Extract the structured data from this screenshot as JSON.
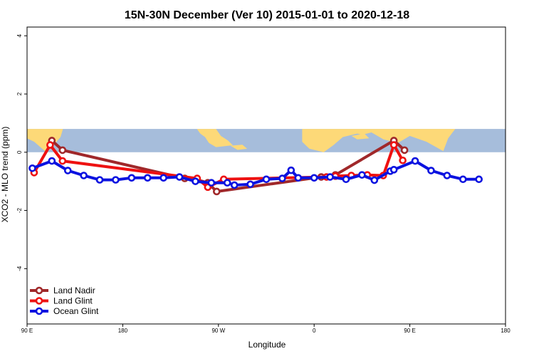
{
  "chart_data": {
    "type": "line",
    "title": "15N-30N December (Ver 10)   2015-01-01 to 2020-12-18",
    "xlabel": "Longitude",
    "ylabel": "XCO2 - MLO trend (ppm)",
    "xlim": [
      -90,
      180
    ],
    "ylim": [
      -5.9,
      4.3
    ],
    "x_ticks": [
      {
        "value": -90,
        "label": "90 E"
      },
      {
        "value": -36,
        "label": "180"
      },
      {
        "value": 18,
        "label": "90 W"
      },
      {
        "value": 72,
        "label": "0"
      },
      {
        "value": 126,
        "label": "90 E"
      },
      {
        "value": 180,
        "label": "180"
      }
    ],
    "y_ticks": [
      {
        "value": 4,
        "label": "4"
      },
      {
        "value": 2,
        "label": "2"
      },
      {
        "value": 0,
        "label": "0"
      },
      {
        "value": -2,
        "label": "-2"
      },
      {
        "value": -4,
        "label": "-4"
      }
    ],
    "background_map": {
      "y_range": [
        0,
        0.8
      ],
      "ocean_color": "#a6bddb",
      "land_color": "#fdd978"
    },
    "legend_position": "bottom-left",
    "series": [
      {
        "name": "Land Nadir",
        "color": "#a0282a",
        "points": [
          [
            -76,
            0.4
          ],
          [
            -70,
            0.07
          ],
          [
            -1,
            -0.9
          ],
          [
            6,
            -0.95
          ],
          [
            12,
            -1.05
          ],
          [
            17,
            -1.35
          ],
          [
            76,
            -0.85
          ],
          [
            84,
            -0.78
          ],
          [
            117,
            0.4
          ],
          [
            123,
            0.07
          ]
        ]
      },
      {
        "name": "Land Glint",
        "color": "#ee1111",
        "points": [
          [
            -86,
            -0.7
          ],
          [
            -77,
            0.25
          ],
          [
            -70,
            -0.3
          ],
          [
            6,
            -0.9
          ],
          [
            12,
            -1.2
          ],
          [
            21,
            -0.93
          ],
          [
            79,
            -0.85
          ],
          [
            84,
            -0.82
          ],
          [
            93,
            -0.8
          ],
          [
            102,
            -0.78
          ],
          [
            111,
            -0.8
          ],
          [
            117,
            0.25
          ],
          [
            122,
            -0.28
          ]
        ]
      },
      {
        "name": "Ocean Glint",
        "color": "#0b12e0",
        "points": [
          [
            -87,
            -0.55
          ],
          [
            -76,
            -0.3
          ],
          [
            -67,
            -0.63
          ],
          [
            -58,
            -0.8
          ],
          [
            -49,
            -0.95
          ],
          [
            -40,
            -0.95
          ],
          [
            -31,
            -0.88
          ],
          [
            -22,
            -0.88
          ],
          [
            -13,
            -0.88
          ],
          [
            -4,
            -0.85
          ],
          [
            5,
            -1.0
          ],
          [
            14,
            -1.05
          ],
          [
            23,
            -1.05
          ],
          [
            27,
            -1.13
          ],
          [
            36,
            -1.1
          ],
          [
            45,
            -0.93
          ],
          [
            54,
            -0.9
          ],
          [
            59,
            -0.62
          ],
          [
            63,
            -0.88
          ],
          [
            72,
            -0.88
          ],
          [
            81,
            -0.85
          ],
          [
            90,
            -0.93
          ],
          [
            99,
            -0.78
          ],
          [
            106,
            -0.96
          ],
          [
            115,
            -0.65
          ],
          [
            117,
            -0.6
          ],
          [
            129,
            -0.3
          ],
          [
            138,
            -0.63
          ],
          [
            147,
            -0.8
          ],
          [
            156,
            -0.93
          ],
          [
            165,
            -0.93
          ]
        ]
      }
    ]
  }
}
